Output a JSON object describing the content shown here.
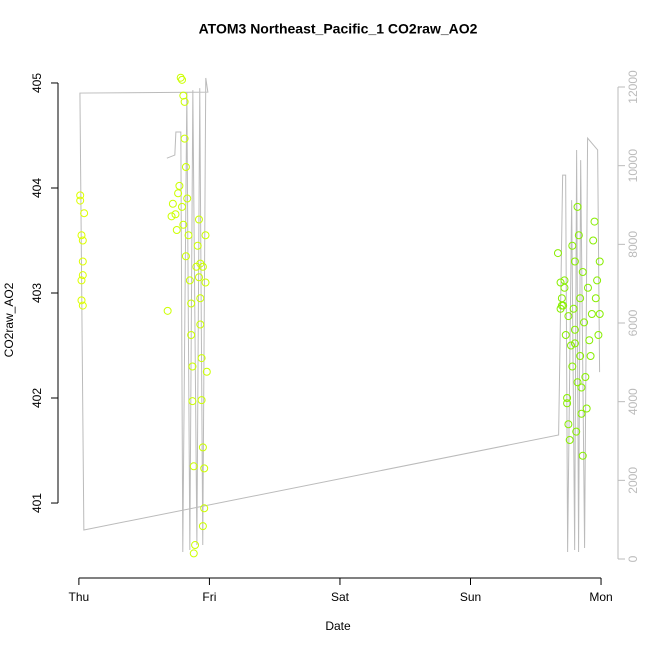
{
  "chart_data": {
    "type": "scatter",
    "title": "ATOM3 Northeast_Pacific_1 CO2raw_AO2",
    "xlabel": "Date",
    "ylabel": "CO2raw_AO2",
    "xlim": [
      -0.16,
      4.13
    ],
    "xticks": [
      {
        "value": 0,
        "label": "Thu"
      },
      {
        "value": 1,
        "label": "Fri"
      },
      {
        "value": 2,
        "label": "Sat"
      },
      {
        "value": 3,
        "label": "Sun"
      },
      {
        "value": 4,
        "label": "Mon"
      }
    ],
    "ylim": [
      400.286,
      405.095
    ],
    "yticks": [
      401,
      402,
      403,
      404,
      405
    ],
    "y2lim": [
      -483,
      12356
    ],
    "y2ticks": [
      0,
      2000,
      4000,
      6000,
      8000,
      10000,
      12000
    ],
    "series": [
      {
        "type": "scatter",
        "color": "#ddff00",
        "x": [
          0.01,
          0.01,
          0.04,
          0.02,
          0.03,
          0.03,
          0.03,
          0.02,
          0.02,
          0.03
        ],
        "values": [
          403.93,
          403.88,
          403.76,
          403.55,
          403.5,
          403.3,
          403.17,
          403.12,
          402.93,
          402.88
        ]
      },
      {
        "type": "scatter",
        "color": "#ccff00",
        "x": [
          0.68,
          0.71,
          0.72,
          0.74,
          0.75,
          0.76,
          0.77,
          0.78,
          0.79,
          0.8,
          0.81,
          0.81,
          0.82,
          0.79,
          0.8,
          0.82,
          0.83,
          0.84,
          0.85,
          0.86,
          0.86,
          0.87,
          0.87,
          0.88,
          0.88,
          0.89,
          0.9,
          0.91,
          0.92,
          0.92,
          0.93,
          0.93,
          0.94,
          0.94,
          0.95,
          0.95,
          0.96,
          0.97,
          0.97,
          0.98,
          0.96,
          0.93,
          0.95
        ],
        "values": [
          402.83,
          403.73,
          403.85,
          403.75,
          403.6,
          403.95,
          404.02,
          405.05,
          405.03,
          404.88,
          404.82,
          404.47,
          404.2,
          403.82,
          403.65,
          403.35,
          403.9,
          403.55,
          403.12,
          402.9,
          402.6,
          402.3,
          401.97,
          401.35,
          400.52,
          400.6,
          403.25,
          403.45,
          403.7,
          403.15,
          402.95,
          402.7,
          402.38,
          401.98,
          401.53,
          400.78,
          400.95,
          403.55,
          403.1,
          402.25,
          401.33,
          403.28,
          403.25
        ]
      },
      {
        "type": "scatter",
        "color": "#88ee00",
        "x": [
          3.67,
          3.69,
          3.7,
          3.71,
          3.72,
          3.73,
          3.74,
          3.74,
          3.75,
          3.76,
          3.77,
          3.78,
          3.78,
          3.79,
          3.8,
          3.8,
          3.81,
          3.82,
          3.82,
          3.83,
          3.84,
          3.84,
          3.85,
          3.86,
          3.86,
          3.87,
          3.88,
          3.89,
          3.9,
          3.91,
          3.92,
          3.93,
          3.94,
          3.95,
          3.96,
          3.97,
          3.98,
          3.99,
          3.99,
          3.69,
          3.72,
          3.75,
          3.8,
          3.85,
          3.7
        ],
        "values": [
          403.38,
          403.1,
          402.95,
          402.88,
          403.05,
          402.6,
          402.0,
          401.95,
          401.75,
          401.6,
          402.5,
          402.3,
          403.45,
          402.85,
          403.3,
          402.65,
          401.68,
          402.15,
          403.82,
          403.55,
          402.95,
          402.4,
          401.85,
          401.45,
          403.2,
          402.72,
          402.2,
          401.9,
          403.05,
          402.55,
          402.4,
          402.8,
          403.5,
          403.68,
          402.95,
          403.12,
          402.6,
          403.3,
          402.8,
          402.85,
          403.12,
          402.78,
          402.52,
          402.1,
          402.88
        ]
      },
      {
        "type": "line",
        "axis": "y2",
        "color": "#bbbbbb",
        "x": [
          0.674,
          0.735,
          0.743,
          0.781,
          0.796,
          0.827,
          0.85,
          0.873,
          0.904,
          0.926,
          0.949,
          0.972,
          0.988,
          0.008,
          0.038,
          3.675,
          3.706,
          3.729,
          3.744,
          3.775,
          3.798,
          3.813,
          3.828,
          3.844,
          3.874,
          3.897,
          3.943,
          3.974,
          3.989
        ],
        "values": [
          10190,
          10270,
          10855,
          10855,
          178,
          11870,
          229,
          11920,
          356,
          11970,
          356,
          12230,
          11870,
          11846,
          737,
          3152,
          9760,
          9760,
          178,
          9125,
          229,
          10400,
          178,
          10140,
          280,
          10700,
          10520,
          10400,
          4750
        ]
      }
    ]
  }
}
